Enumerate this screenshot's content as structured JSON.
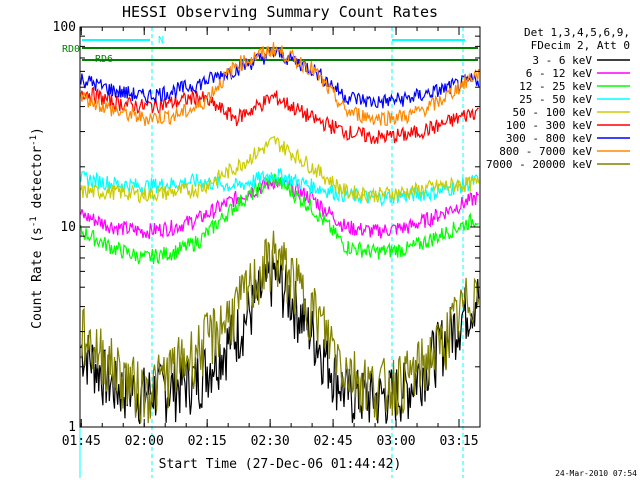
{
  "chart_data": {
    "type": "line",
    "title": "HESSI Observing Summary Count Rates",
    "xlabel": "Start Time (27-Dec-06 01:44:42)",
    "ylabel_prefix": "Count Rate (s",
    "ylabel_sup": "-1",
    "ylabel_mid": " detector",
    "ylabel_suffix": ")",
    "y_scale": "log",
    "ylim": [
      1,
      100
    ],
    "y_ticks": [
      {
        "value": 1,
        "label": "1"
      },
      {
        "value": 10,
        "label": "10"
      },
      {
        "value": 100,
        "label": "100"
      }
    ],
    "x_range_minutes": [
      104.7,
      200
    ],
    "x_ticks": [
      {
        "value": 105,
        "label": "01:45"
      },
      {
        "value": 120,
        "label": "02:00"
      },
      {
        "value": 135,
        "label": "02:15"
      },
      {
        "value": 150,
        "label": "02:30"
      },
      {
        "value": 165,
        "label": "02:45"
      },
      {
        "value": 180,
        "label": "03:00"
      },
      {
        "value": 195,
        "label": "03:15"
      }
    ],
    "legend_placement": "right",
    "legend_header": [
      "Det 1,3,4,5,6,9,",
      "FDecim 2, Att 0"
    ],
    "series": [
      {
        "name": "3 - 6 keV",
        "color": "#000000",
        "values": [
          2.5,
          1.6,
          1.5,
          1.6,
          1.8,
          3,
          6,
          3,
          1.5,
          1.4,
          1.6,
          2.5,
          4.5
        ]
      },
      {
        "name": "6 - 12 keV",
        "color": "#ff00ff",
        "values": [
          11.5,
          10,
          9.5,
          10,
          11,
          14,
          17,
          14,
          10,
          9.5,
          10,
          11.5,
          14
        ]
      },
      {
        "name": "12 - 25 keV",
        "color": "#00ff00",
        "values": [
          9.5,
          7.8,
          7,
          7.5,
          8.5,
          13,
          17.5,
          12.5,
          8,
          7.5,
          7.8,
          9,
          11
        ]
      },
      {
        "name": "25 - 50 keV",
        "color": "#00ffff",
        "values": [
          17.5,
          16.5,
          16,
          16.5,
          17,
          16,
          18.5,
          16,
          14.5,
          14,
          14.5,
          15,
          17
        ]
      },
      {
        "name": "50 - 100 keV",
        "color": "#cccc00",
        "values": [
          15,
          15,
          14.5,
          15,
          15.5,
          20,
          27,
          20,
          15,
          14.5,
          15,
          16,
          16.5
        ]
      },
      {
        "name": "100 - 300 keV",
        "color": "#ff0000",
        "values": [
          48,
          42,
          40,
          42,
          45,
          35,
          45,
          35,
          30,
          28,
          29,
          32,
          38
        ]
      },
      {
        "name": "300 - 800 keV",
        "color": "#0000ff",
        "values": [
          55,
          48,
          45,
          48,
          52,
          62,
          75,
          62,
          45,
          42,
          44,
          48,
          55
        ]
      },
      {
        "name": "800 - 7000 keV",
        "color": "#ff8800",
        "values": [
          45,
          38,
          35,
          36,
          40,
          65,
          78,
          62,
          38,
          35,
          36,
          42,
          58
        ]
      },
      {
        "name": "7000 - 20000 keV",
        "color": "#808000",
        "values": [
          3,
          2,
          1.5,
          2,
          2.5,
          4,
          7.5,
          4,
          2,
          1.6,
          1.8,
          2.5,
          5
        ]
      }
    ],
    "series_x_minutes": [
      105,
      113,
      120,
      127,
      133,
      142,
      151,
      160,
      168,
      175,
      183,
      190,
      199
    ],
    "annotations": [
      {
        "text": "RD0",
        "color": "#008000"
      },
      {
        "text": "RD6",
        "color": "#008000"
      },
      {
        "text": "N",
        "color": "#00ffff"
      }
    ],
    "timestamp": "24-Mar-2010 07:54"
  }
}
